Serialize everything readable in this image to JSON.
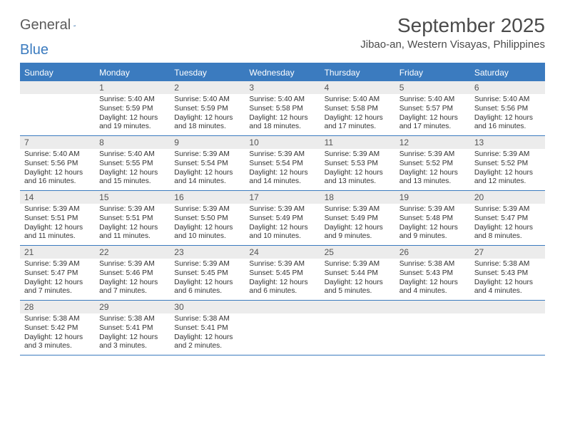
{
  "logo": {
    "text1": "General",
    "text2": "Blue"
  },
  "title": "September 2025",
  "location": "Jibao-an, Western Visayas, Philippines",
  "colors": {
    "header_bg": "#3b7bbf",
    "header_text": "#ffffff",
    "daynum_bg": "#ececec",
    "week_border": "#3b7bbf",
    "body_text": "#333333"
  },
  "day_names": [
    "Sunday",
    "Monday",
    "Tuesday",
    "Wednesday",
    "Thursday",
    "Friday",
    "Saturday"
  ],
  "weeks": [
    [
      {
        "n": "",
        "sr": "",
        "ss": "",
        "d1": "",
        "d2": ""
      },
      {
        "n": "1",
        "sr": "Sunrise: 5:40 AM",
        "ss": "Sunset: 5:59 PM",
        "d1": "Daylight: 12 hours",
        "d2": "and 19 minutes."
      },
      {
        "n": "2",
        "sr": "Sunrise: 5:40 AM",
        "ss": "Sunset: 5:59 PM",
        "d1": "Daylight: 12 hours",
        "d2": "and 18 minutes."
      },
      {
        "n": "3",
        "sr": "Sunrise: 5:40 AM",
        "ss": "Sunset: 5:58 PM",
        "d1": "Daylight: 12 hours",
        "d2": "and 18 minutes."
      },
      {
        "n": "4",
        "sr": "Sunrise: 5:40 AM",
        "ss": "Sunset: 5:58 PM",
        "d1": "Daylight: 12 hours",
        "d2": "and 17 minutes."
      },
      {
        "n": "5",
        "sr": "Sunrise: 5:40 AM",
        "ss": "Sunset: 5:57 PM",
        "d1": "Daylight: 12 hours",
        "d2": "and 17 minutes."
      },
      {
        "n": "6",
        "sr": "Sunrise: 5:40 AM",
        "ss": "Sunset: 5:56 PM",
        "d1": "Daylight: 12 hours",
        "d2": "and 16 minutes."
      }
    ],
    [
      {
        "n": "7",
        "sr": "Sunrise: 5:40 AM",
        "ss": "Sunset: 5:56 PM",
        "d1": "Daylight: 12 hours",
        "d2": "and 16 minutes."
      },
      {
        "n": "8",
        "sr": "Sunrise: 5:40 AM",
        "ss": "Sunset: 5:55 PM",
        "d1": "Daylight: 12 hours",
        "d2": "and 15 minutes."
      },
      {
        "n": "9",
        "sr": "Sunrise: 5:39 AM",
        "ss": "Sunset: 5:54 PM",
        "d1": "Daylight: 12 hours",
        "d2": "and 14 minutes."
      },
      {
        "n": "10",
        "sr": "Sunrise: 5:39 AM",
        "ss": "Sunset: 5:54 PM",
        "d1": "Daylight: 12 hours",
        "d2": "and 14 minutes."
      },
      {
        "n": "11",
        "sr": "Sunrise: 5:39 AM",
        "ss": "Sunset: 5:53 PM",
        "d1": "Daylight: 12 hours",
        "d2": "and 13 minutes."
      },
      {
        "n": "12",
        "sr": "Sunrise: 5:39 AM",
        "ss": "Sunset: 5:52 PM",
        "d1": "Daylight: 12 hours",
        "d2": "and 13 minutes."
      },
      {
        "n": "13",
        "sr": "Sunrise: 5:39 AM",
        "ss": "Sunset: 5:52 PM",
        "d1": "Daylight: 12 hours",
        "d2": "and 12 minutes."
      }
    ],
    [
      {
        "n": "14",
        "sr": "Sunrise: 5:39 AM",
        "ss": "Sunset: 5:51 PM",
        "d1": "Daylight: 12 hours",
        "d2": "and 11 minutes."
      },
      {
        "n": "15",
        "sr": "Sunrise: 5:39 AM",
        "ss": "Sunset: 5:51 PM",
        "d1": "Daylight: 12 hours",
        "d2": "and 11 minutes."
      },
      {
        "n": "16",
        "sr": "Sunrise: 5:39 AM",
        "ss": "Sunset: 5:50 PM",
        "d1": "Daylight: 12 hours",
        "d2": "and 10 minutes."
      },
      {
        "n": "17",
        "sr": "Sunrise: 5:39 AM",
        "ss": "Sunset: 5:49 PM",
        "d1": "Daylight: 12 hours",
        "d2": "and 10 minutes."
      },
      {
        "n": "18",
        "sr": "Sunrise: 5:39 AM",
        "ss": "Sunset: 5:49 PM",
        "d1": "Daylight: 12 hours",
        "d2": "and 9 minutes."
      },
      {
        "n": "19",
        "sr": "Sunrise: 5:39 AM",
        "ss": "Sunset: 5:48 PM",
        "d1": "Daylight: 12 hours",
        "d2": "and 9 minutes."
      },
      {
        "n": "20",
        "sr": "Sunrise: 5:39 AM",
        "ss": "Sunset: 5:47 PM",
        "d1": "Daylight: 12 hours",
        "d2": "and 8 minutes."
      }
    ],
    [
      {
        "n": "21",
        "sr": "Sunrise: 5:39 AM",
        "ss": "Sunset: 5:47 PM",
        "d1": "Daylight: 12 hours",
        "d2": "and 7 minutes."
      },
      {
        "n": "22",
        "sr": "Sunrise: 5:39 AM",
        "ss": "Sunset: 5:46 PM",
        "d1": "Daylight: 12 hours",
        "d2": "and 7 minutes."
      },
      {
        "n": "23",
        "sr": "Sunrise: 5:39 AM",
        "ss": "Sunset: 5:45 PM",
        "d1": "Daylight: 12 hours",
        "d2": "and 6 minutes."
      },
      {
        "n": "24",
        "sr": "Sunrise: 5:39 AM",
        "ss": "Sunset: 5:45 PM",
        "d1": "Daylight: 12 hours",
        "d2": "and 6 minutes."
      },
      {
        "n": "25",
        "sr": "Sunrise: 5:39 AM",
        "ss": "Sunset: 5:44 PM",
        "d1": "Daylight: 12 hours",
        "d2": "and 5 minutes."
      },
      {
        "n": "26",
        "sr": "Sunrise: 5:38 AM",
        "ss": "Sunset: 5:43 PM",
        "d1": "Daylight: 12 hours",
        "d2": "and 4 minutes."
      },
      {
        "n": "27",
        "sr": "Sunrise: 5:38 AM",
        "ss": "Sunset: 5:43 PM",
        "d1": "Daylight: 12 hours",
        "d2": "and 4 minutes."
      }
    ],
    [
      {
        "n": "28",
        "sr": "Sunrise: 5:38 AM",
        "ss": "Sunset: 5:42 PM",
        "d1": "Daylight: 12 hours",
        "d2": "and 3 minutes."
      },
      {
        "n": "29",
        "sr": "Sunrise: 5:38 AM",
        "ss": "Sunset: 5:41 PM",
        "d1": "Daylight: 12 hours",
        "d2": "and 3 minutes."
      },
      {
        "n": "30",
        "sr": "Sunrise: 5:38 AM",
        "ss": "Sunset: 5:41 PM",
        "d1": "Daylight: 12 hours",
        "d2": "and 2 minutes."
      },
      {
        "n": "",
        "sr": "",
        "ss": "",
        "d1": "",
        "d2": ""
      },
      {
        "n": "",
        "sr": "",
        "ss": "",
        "d1": "",
        "d2": ""
      },
      {
        "n": "",
        "sr": "",
        "ss": "",
        "d1": "",
        "d2": ""
      },
      {
        "n": "",
        "sr": "",
        "ss": "",
        "d1": "",
        "d2": ""
      }
    ]
  ]
}
